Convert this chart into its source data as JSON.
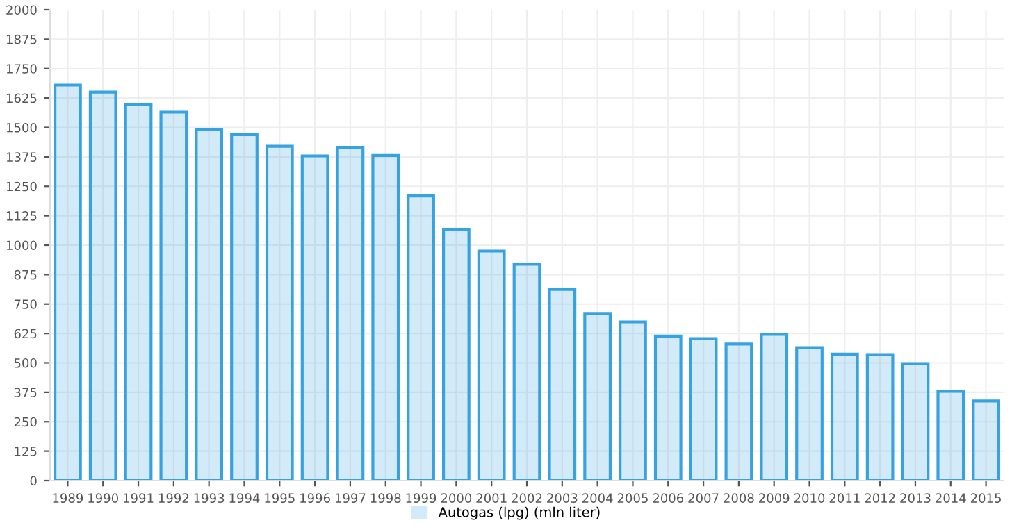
{
  "chart_data": {
    "type": "bar",
    "categories": [
      "1989",
      "1990",
      "1991",
      "1992",
      "1993",
      "1994",
      "1995",
      "1996",
      "1997",
      "1998",
      "1999",
      "2000",
      "2001",
      "2002",
      "2003",
      "2004",
      "2005",
      "2006",
      "2007",
      "2008",
      "2009",
      "2010",
      "2011",
      "2012",
      "2013",
      "2014",
      "2015"
    ],
    "series": [
      {
        "name": "Autogas (lpg) (mln liter)",
        "color": "#36a2e0",
        "values": [
          1680,
          1650,
          1597,
          1565,
          1491,
          1469,
          1420,
          1379,
          1416,
          1381,
          1209,
          1066,
          975,
          919,
          812,
          710,
          674,
          614,
          603,
          580,
          621,
          565,
          537,
          535,
          497,
          379,
          338
        ]
      }
    ],
    "ylim": [
      0,
      2000
    ],
    "yticks": [
      0,
      125,
      250,
      375,
      500,
      625,
      750,
      875,
      1000,
      1125,
      1250,
      1375,
      1500,
      1625,
      1750,
      1875,
      2000
    ],
    "grid": true,
    "legend": "bottom"
  }
}
